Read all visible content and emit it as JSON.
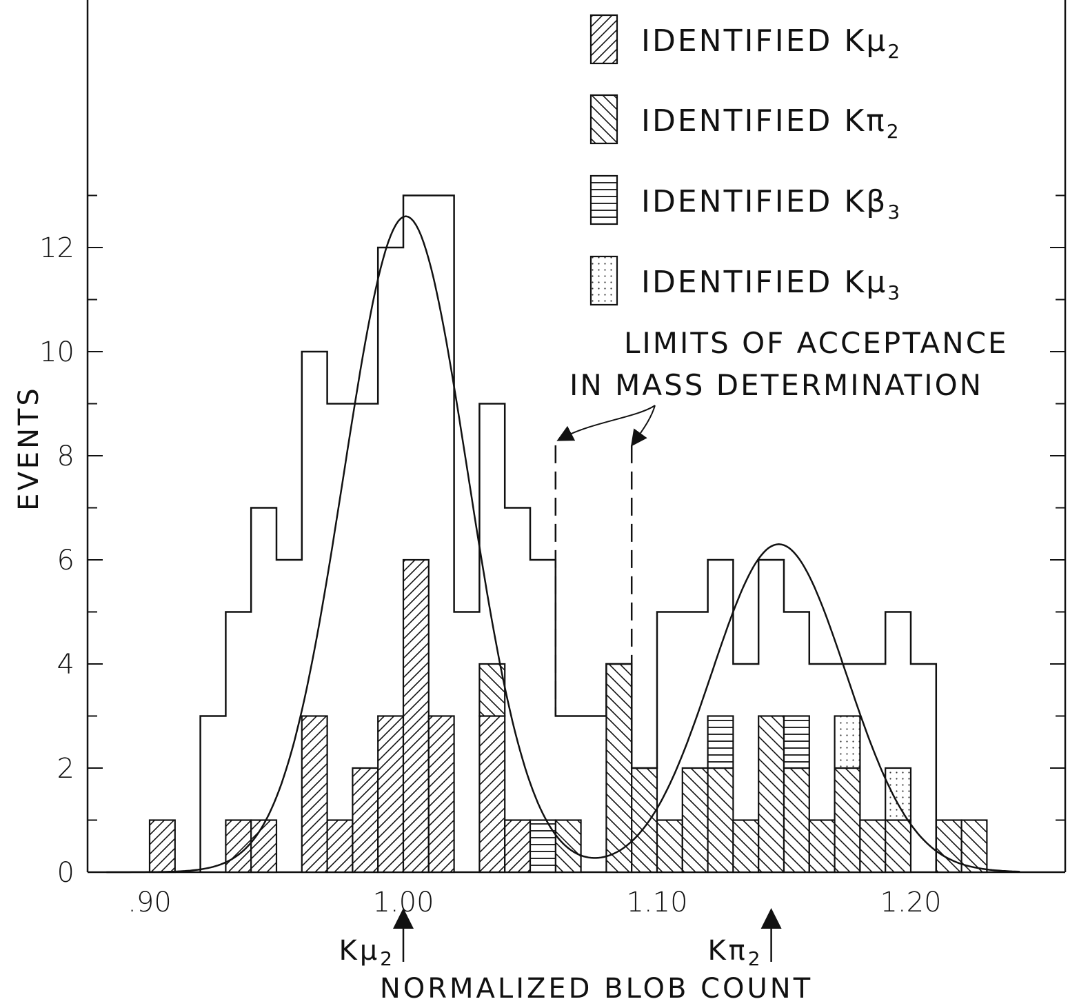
{
  "chart_data": {
    "type": "bar",
    "title": "",
    "xlabel": "NORMALIZED BLOB COUNT",
    "ylabel": "EVENTS",
    "xlim": [
      0.88,
      1.25
    ],
    "ylim": [
      0,
      14
    ],
    "x_ticks": [
      {
        "value": 0.9,
        "label": ".90"
      },
      {
        "value": 1.0,
        "label": "1.00"
      },
      {
        "value": 1.1,
        "label": "1.10"
      },
      {
        "value": 1.2,
        "label": "1.20"
      }
    ],
    "y_ticks": [
      {
        "value": 0,
        "label": "0"
      },
      {
        "value": 2,
        "label": "2"
      },
      {
        "value": 4,
        "label": "4"
      },
      {
        "value": 6,
        "label": "6"
      },
      {
        "value": 8,
        "label": "8"
      },
      {
        "value": 10,
        "label": "10"
      },
      {
        "value": 12,
        "label": "12"
      }
    ],
    "bin_width": 0.01,
    "total_histogram": [
      {
        "x": 0.92,
        "y": 3
      },
      {
        "x": 0.93,
        "y": 5
      },
      {
        "x": 0.94,
        "y": 7
      },
      {
        "x": 0.95,
        "y": 6
      },
      {
        "x": 0.96,
        "y": 10
      },
      {
        "x": 0.97,
        "y": 9
      },
      {
        "x": 0.98,
        "y": 9
      },
      {
        "x": 0.99,
        "y": 12
      },
      {
        "x": 1.0,
        "y": 13
      },
      {
        "x": 1.01,
        "y": 13
      },
      {
        "x": 1.02,
        "y": 5
      },
      {
        "x": 1.03,
        "y": 9
      },
      {
        "x": 1.04,
        "y": 7
      },
      {
        "x": 1.05,
        "y": 6
      },
      {
        "x": 1.06,
        "y": 3
      },
      {
        "x": 1.07,
        "y": 3
      },
      {
        "x": 1.08,
        "y": 4
      },
      {
        "x": 1.09,
        "y": 2
      },
      {
        "x": 1.1,
        "y": 5
      },
      {
        "x": 1.11,
        "y": 5
      },
      {
        "x": 1.12,
        "y": 6
      },
      {
        "x": 1.13,
        "y": 4
      },
      {
        "x": 1.14,
        "y": 6
      },
      {
        "x": 1.15,
        "y": 5
      },
      {
        "x": 1.16,
        "y": 4
      },
      {
        "x": 1.17,
        "y": 4
      },
      {
        "x": 1.18,
        "y": 4
      },
      {
        "x": 1.19,
        "y": 5
      },
      {
        "x": 1.2,
        "y": 4
      }
    ],
    "series": [
      {
        "name": "IDENTIFIED Kμ2",
        "pattern": "diag-up",
        "bars": [
          {
            "x": 0.9,
            "y0": 0,
            "y1": 1
          },
          {
            "x": 0.93,
            "y0": 0,
            "y1": 1
          },
          {
            "x": 0.94,
            "y0": 0,
            "y1": 1
          },
          {
            "x": 0.96,
            "y0": 0,
            "y1": 3
          },
          {
            "x": 0.97,
            "y0": 0,
            "y1": 1
          },
          {
            "x": 0.98,
            "y0": 0,
            "y1": 2
          },
          {
            "x": 0.99,
            "y0": 0,
            "y1": 3
          },
          {
            "x": 1.0,
            "y0": 0,
            "y1": 6
          },
          {
            "x": 1.01,
            "y0": 0,
            "y1": 3
          },
          {
            "x": 1.03,
            "y0": 0,
            "y1": 3
          },
          {
            "x": 1.04,
            "y0": 0,
            "y1": 1
          }
        ]
      },
      {
        "name": "IDENTIFIED Kπ2",
        "pattern": "diag-down",
        "bars": [
          {
            "x": 1.03,
            "y0": 3,
            "y1": 4
          },
          {
            "x": 1.06,
            "y0": 0,
            "y1": 1
          },
          {
            "x": 1.08,
            "y0": 0,
            "y1": 4
          },
          {
            "x": 1.09,
            "y0": 0,
            "y1": 2
          },
          {
            "x": 1.1,
            "y0": 0,
            "y1": 1
          },
          {
            "x": 1.11,
            "y0": 0,
            "y1": 2
          },
          {
            "x": 1.12,
            "y0": 0,
            "y1": 2
          },
          {
            "x": 1.13,
            "y0": 0,
            "y1": 1
          },
          {
            "x": 1.14,
            "y0": 0,
            "y1": 3
          },
          {
            "x": 1.15,
            "y0": 0,
            "y1": 2
          },
          {
            "x": 1.16,
            "y0": 0,
            "y1": 1
          },
          {
            "x": 1.17,
            "y0": 0,
            "y1": 2
          },
          {
            "x": 1.18,
            "y0": 0,
            "y1": 1
          },
          {
            "x": 1.19,
            "y0": 0,
            "y1": 1
          },
          {
            "x": 1.21,
            "y0": 0,
            "y1": 1
          },
          {
            "x": 1.22,
            "y0": 0,
            "y1": 1
          }
        ]
      },
      {
        "name": "IDENTIFIED Kβ3",
        "pattern": "horizontal",
        "bars": [
          {
            "x": 1.05,
            "y0": 0,
            "y1": 1
          },
          {
            "x": 1.12,
            "y0": 2,
            "y1": 3
          },
          {
            "x": 1.15,
            "y0": 2,
            "y1": 3
          }
        ]
      },
      {
        "name": "IDENTIFIED Kμ3",
        "pattern": "dotted",
        "bars": [
          {
            "x": 1.17,
            "y0": 2,
            "y1": 3
          },
          {
            "x": 1.19,
            "y0": 1,
            "y1": 2
          }
        ]
      }
    ],
    "fit_curve": {
      "peaks": [
        {
          "center": 1.001,
          "amplitude": 12.6,
          "sigma": 0.0245
        },
        {
          "center": 1.148,
          "amplitude": 6.3,
          "sigma": 0.0265
        }
      ],
      "x_range": [
        0.883,
        1.243
      ]
    },
    "acceptance_limits": {
      "x": [
        1.06,
        1.09
      ],
      "y_top": 8.2
    },
    "annotations": {
      "limits_line1": "LIMITS OF ACCEPTANCE",
      "limits_line2": "IN MASS DETERMINATION",
      "marker_kmu2": {
        "x": 1.0,
        "label_main": "K",
        "label_greek": "μ",
        "label_sub": "2"
      },
      "marker_kpi2": {
        "x": 1.145,
        "label_main": "K",
        "label_greek": "π",
        "label_sub": "2"
      }
    },
    "legend": {
      "placement": "top-right",
      "entries": [
        {
          "pattern": "diag-up",
          "prefix": "IDENTIFIED K",
          "greek": "μ",
          "sub": "2"
        },
        {
          "pattern": "diag-down",
          "prefix": "IDENTIFIED K",
          "greek": "π",
          "sub": "2"
        },
        {
          "pattern": "horizontal",
          "prefix": "IDENTIFIED K",
          "greek": "β",
          "sub": "3"
        },
        {
          "pattern": "dotted",
          "prefix": "IDENTIFIED K",
          "greek": "μ",
          "sub": "3"
        }
      ]
    }
  }
}
